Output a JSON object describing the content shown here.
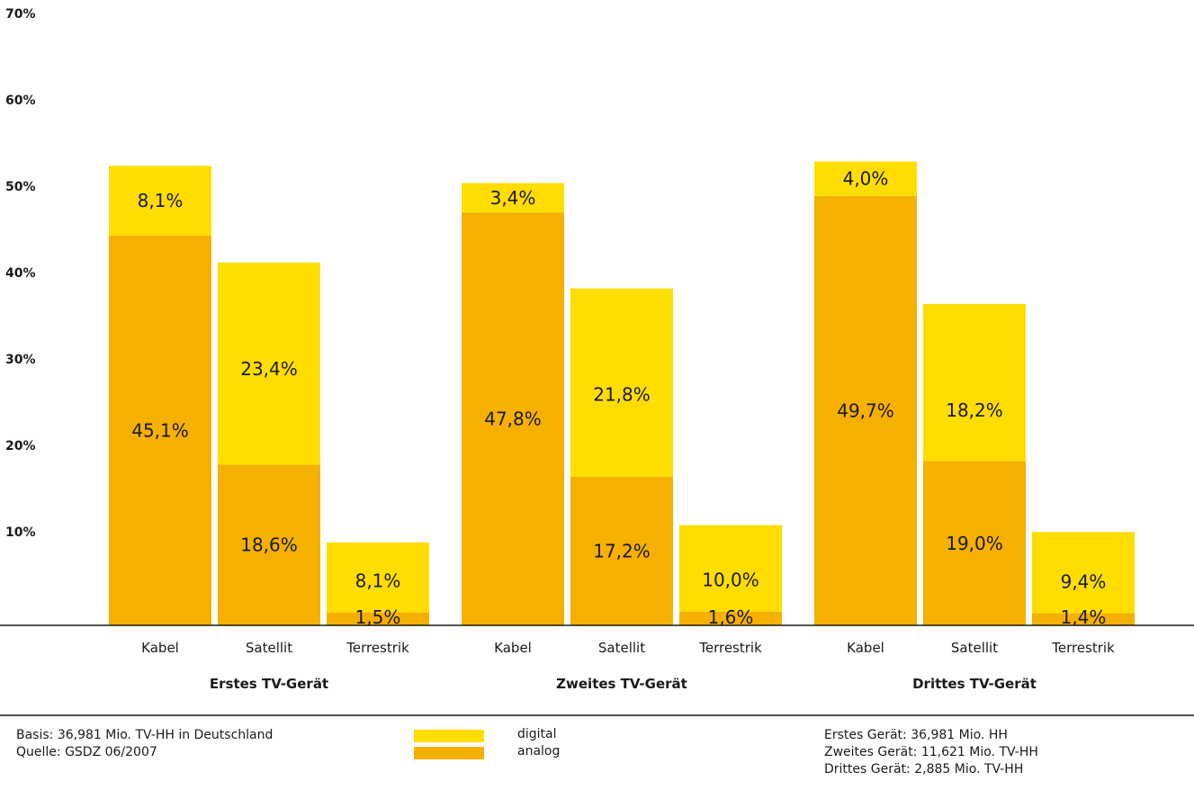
{
  "colors": {
    "digital": "#FFDD00",
    "analog": "#F5B000",
    "axis": "#1a1a1a"
  },
  "chart_data": {
    "type": "bar",
    "stacked": true,
    "ylim": [
      0,
      70
    ],
    "yticks": [
      "70%",
      "60%",
      "50%",
      "40%",
      "30%",
      "20%",
      "10%"
    ],
    "groups": [
      {
        "label": "Erstes TV-Gerät",
        "bars": [
          {
            "category": "Kabel",
            "analog": 45.1,
            "digital": 8.1,
            "analog_label": "45,1%",
            "digital_label": "8,1%"
          },
          {
            "category": "Satellit",
            "analog": 18.6,
            "digital": 23.4,
            "analog_label": "18,6%",
            "digital_label": "23,4%"
          },
          {
            "category": "Terrestrik",
            "analog": 1.5,
            "digital": 8.1,
            "analog_label": "1,5%",
            "digital_label": "8,1%"
          }
        ]
      },
      {
        "label": "Zweites TV-Gerät",
        "bars": [
          {
            "category": "Kabel",
            "analog": 47.8,
            "digital": 3.4,
            "analog_label": "47,8%",
            "digital_label": "3,4%"
          },
          {
            "category": "Satellit",
            "analog": 17.2,
            "digital": 21.8,
            "analog_label": "17,2%",
            "digital_label": "21,8%"
          },
          {
            "category": "Terrestrik",
            "analog": 1.6,
            "digital": 10.0,
            "analog_label": "1,6%",
            "digital_label": "10,0%"
          }
        ]
      },
      {
        "label": "Drittes TV-Gerät",
        "bars": [
          {
            "category": "Kabel",
            "analog": 49.7,
            "digital": 4.0,
            "analog_label": "49,7%",
            "digital_label": "4,0%"
          },
          {
            "category": "Satellit",
            "analog": 19.0,
            "digital": 18.2,
            "analog_label": "19,0%",
            "digital_label": "18,2%"
          },
          {
            "category": "Terrestrik",
            "analog": 1.4,
            "digital": 9.4,
            "analog_label": "1,4%",
            "digital_label": "9,4%"
          }
        ]
      }
    ],
    "legend": [
      {
        "key": "digital",
        "label": "digital"
      },
      {
        "key": "analog",
        "label": "analog"
      }
    ]
  },
  "footer": {
    "basis": "Basis: 36,981 Mio. TV-HH in Deutschland",
    "source": "Quelle: GSDZ 06/2007",
    "notes": [
      "Erstes Gerät: 36,981 Mio. HH",
      "Zweites Gerät: 11,621 Mio. TV-HH",
      "Drittes Gerät: 2,885 Mio. TV-HH"
    ]
  }
}
